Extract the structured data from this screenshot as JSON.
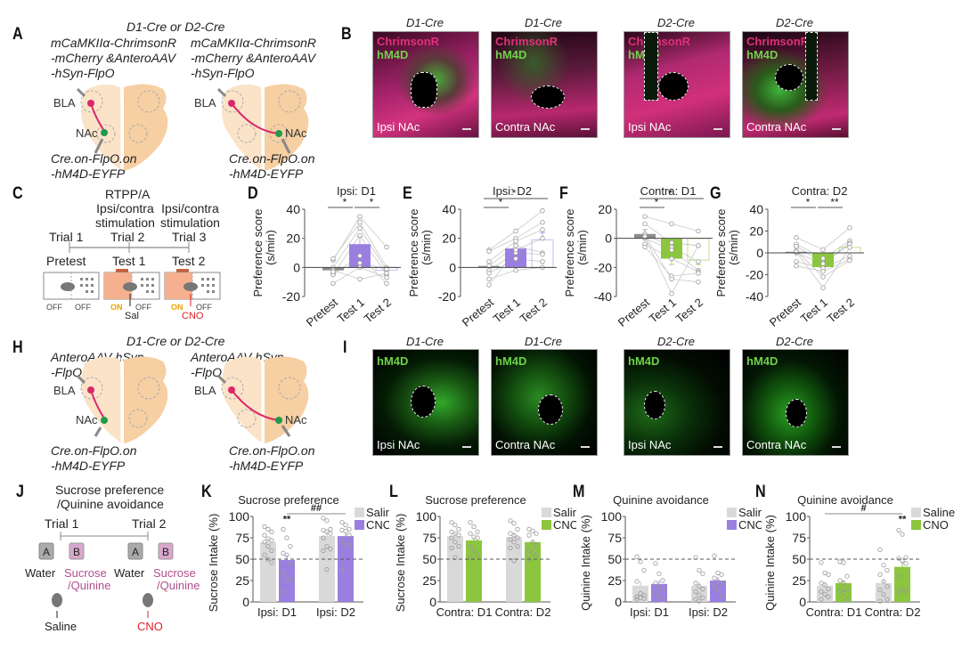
{
  "panels": {
    "A": {
      "label": "A",
      "header": "D1-Cre or D2-Cre",
      "left": {
        "virus1": [
          "mCaMKIIα-ChrimsonR",
          "-mCherry &AnteroAAV",
          "-hSyn-FlpO"
        ],
        "virus2": [
          "Cre.on-FlpO.on",
          "-hM4D-EYFP"
        ],
        "bla": "BLA",
        "nac": "NAc"
      },
      "right": {
        "virus1": [
          "mCaMKIIα-ChrimsonR",
          "-mCherry &AnteroAAV",
          "-hSyn-FlpO"
        ],
        "virus2": [
          "Cre.on-FlpO.on",
          "-hM4D-EYFP"
        ],
        "bla": "BLA",
        "nac": "NAc"
      }
    },
    "B": {
      "label": "B",
      "images": [
        {
          "title": "D1-Cre",
          "ch1": "ChrimsonR",
          "ch2": "hM4D",
          "location": "Ipsi NAc"
        },
        {
          "title": "D1-Cre",
          "ch1": "ChrimsonR",
          "ch2": "hM4D",
          "location": "Contra NAc"
        },
        {
          "title": "D2-Cre",
          "ch1": "ChrimsonR",
          "ch2": "hM4D",
          "location": "Ipsi NAc"
        },
        {
          "title": "D2-Cre",
          "ch1": "ChrimsonR",
          "ch2": "hM4D",
          "location": "Contra NAc"
        }
      ]
    },
    "C": {
      "label": "C",
      "title": "RTPP/A",
      "stim": [
        "Ipsi/contra",
        "stimulation"
      ],
      "trials": [
        "Trial 1",
        "Trial 2",
        "Trial 3"
      ],
      "tests": [
        "Pretest",
        "Test 1",
        "Test 2"
      ],
      "switches": [
        [
          "OFF",
          "OFF"
        ],
        [
          "ON",
          "OFF"
        ],
        [
          "ON",
          "OFF"
        ]
      ],
      "injections": [
        "Sal",
        "CNO"
      ]
    },
    "H": {
      "label": "H",
      "header": "D1-Cre or D2-Cre",
      "left": {
        "virus1": [
          "AnteroAAV-hSyn",
          "-FlpO"
        ],
        "virus2": [
          "Cre.on-FlpO.on",
          "-hM4D-EYFP"
        ],
        "bla": "BLA",
        "nac": "NAc"
      },
      "right": {
        "virus1": [
          "AnteroAAV-hSyn",
          "-FlpO"
        ],
        "virus2": [
          "Cre.on-FlpO.on",
          "-hM4D-EYFP"
        ],
        "bla": "BLA",
        "nac": "NAc"
      }
    },
    "I": {
      "label": "I",
      "images": [
        {
          "title": "D1-Cre",
          "ch": "hM4D",
          "location": "Ipsi NAc"
        },
        {
          "title": "D1-Cre",
          "ch": "hM4D",
          "location": "Contra NAc"
        },
        {
          "title": "D2-Cre",
          "ch": "hM4D",
          "location": "Ipsi NAc"
        },
        {
          "title": "D2-Cre",
          "ch": "hM4D",
          "location": "Contra NAc"
        }
      ]
    },
    "J": {
      "label": "J",
      "title": [
        "Sucrose preference",
        "/Quinine avoidance"
      ],
      "trials": [
        "Trial 1",
        "Trial 2"
      ],
      "bottles": [
        "A",
        "B",
        "A",
        "B"
      ],
      "liquids": [
        "Water",
        "Sucrose",
        "/Quinine"
      ],
      "injections": [
        "Saline",
        "CNO"
      ]
    }
  },
  "colors": {
    "purple": "#9b7fe0",
    "green": "#8cc63f",
    "saline": "#d9d9d9",
    "pretest": "#8c8c8c",
    "magenta": "#d9276b",
    "green_dot": "#1f9a4a",
    "brain_light": "#fbe3c8",
    "brain_dark": "#f6cfa3",
    "orange": "#f0a000",
    "red": "#e0202a",
    "pink_text": "#b04f8f"
  },
  "chart_data": [
    {
      "id": "D",
      "label": "D",
      "type": "bar",
      "title": "Ipsi: D1",
      "ylabel": "Preference score (s/min)",
      "ylim": [
        -20,
        40
      ],
      "yticks": [
        -20,
        0,
        20,
        40
      ],
      "categories": [
        "Pretest",
        "Test 1",
        "Test 2"
      ],
      "values": [
        -2,
        16,
        -2
      ],
      "errors": [
        2,
        5,
        3
      ],
      "bar_styles": [
        "pretest",
        "filled",
        "outline"
      ],
      "accent": "purple",
      "points": [
        [
          5,
          6,
          0,
          -5,
          -5,
          -11,
          -2,
          -3
        ],
        [
          35,
          31,
          27,
          22,
          8,
          0,
          -8,
          3
        ],
        [
          14,
          0,
          -2,
          -5,
          -11,
          -7,
          -4,
          -1
        ]
      ],
      "significance": [
        {
          "pair": [
            0,
            1
          ],
          "text": "*"
        },
        {
          "pair": [
            1,
            2
          ],
          "text": "*"
        }
      ]
    },
    {
      "id": "E",
      "label": "E",
      "type": "bar",
      "title": "Ipsi: D2",
      "ylabel": "Preference score (s/min)",
      "ylim": [
        -20,
        40
      ],
      "yticks": [
        -20,
        0,
        20,
        40
      ],
      "categories": [
        "Pretest",
        "Test 1",
        "Test 2"
      ],
      "values": [
        1,
        13,
        19
      ],
      "errors": [
        3,
        3,
        5
      ],
      "bar_styles": [
        "pretest",
        "filled",
        "outline"
      ],
      "accent": "purple",
      "points": [
        [
          12,
          11,
          4,
          1,
          -2,
          -4,
          -8,
          -12
        ],
        [
          25,
          20,
          18,
          15,
          10,
          6,
          -2,
          12
        ],
        [
          39,
          31,
          26,
          10,
          9,
          4,
          0,
          20
        ]
      ],
      "significance": [
        {
          "pair": [
            0,
            1
          ],
          "text": "*"
        },
        {
          "pair": [
            0,
            2
          ],
          "text": "*"
        }
      ]
    },
    {
      "id": "F",
      "label": "F",
      "type": "bar",
      "title": "Contra: D1",
      "ylabel": "Preference score (s/min)",
      "ylim": [
        -40,
        20
      ],
      "yticks": [
        -40,
        -20,
        0,
        20
      ],
      "categories": [
        "Pretest",
        "Test 1",
        "Test 2"
      ],
      "values": [
        3,
        -14,
        -15
      ],
      "errors": [
        3,
        4,
        3
      ],
      "bar_styles": [
        "pretest",
        "filled",
        "outline"
      ],
      "accent": "green",
      "points": [
        [
          15,
          10,
          3,
          0,
          -4,
          -6,
          2,
          1
        ],
        [
          10,
          -3,
          -6,
          -8,
          -14,
          -26,
          -28,
          -38
        ],
        [
          5,
          -5,
          -16,
          -22,
          -23,
          -24,
          -30,
          -5
        ]
      ],
      "significance": [
        {
          "pair": [
            0,
            1
          ],
          "text": "*"
        },
        {
          "pair": [
            0,
            2
          ],
          "text": "*"
        }
      ]
    },
    {
      "id": "G",
      "label": "G",
      "type": "bar",
      "title": "Contra: D2",
      "ylabel": "Preference score (s/min)",
      "ylim": [
        -40,
        40
      ],
      "yticks": [
        -40,
        -20,
        0,
        20,
        40
      ],
      "categories": [
        "Pretest",
        "Test 1",
        "Test 2"
      ],
      "values": [
        1,
        -13,
        5
      ],
      "errors": [
        4,
        3,
        4
      ],
      "bar_styles": [
        "pretest",
        "filled",
        "outline"
      ],
      "accent": "green",
      "points": [
        [
          14,
          8,
          6,
          0,
          -8,
          -12,
          2,
          1
        ],
        [
          3,
          -5,
          -9,
          -10,
          -14,
          -17,
          -22,
          -32
        ],
        [
          23,
          11,
          9,
          8,
          -3,
          -6,
          -7,
          5
        ]
      ],
      "significance": [
        {
          "pair": [
            0,
            1
          ],
          "text": "*"
        },
        {
          "pair": [
            1,
            2
          ],
          "text": "**"
        }
      ]
    },
    {
      "id": "K",
      "label": "K",
      "type": "bar",
      "title": "Sucrose preference",
      "ylabel": "Sucrose Intake (%)",
      "ylim": [
        0,
        100
      ],
      "yticks": [
        0,
        25,
        50,
        75,
        100
      ],
      "categories": [
        "Ipsi: D1",
        "Ipsi: D2"
      ],
      "accent": "purple",
      "legend": [
        "Saline",
        "CNO"
      ],
      "legend_position": "top-right",
      "reference_line": 50,
      "series": [
        {
          "name": "Saline",
          "values": [
            70,
            77
          ],
          "errors": [
            4,
            5
          ],
          "points": [
            [
              88,
              85,
              82,
              78,
              74,
              72,
              70,
              65,
              60,
              55,
              50,
              46
            ],
            [
              98,
              95,
              85,
              84,
              82,
              80,
              75,
              65,
              62,
              60,
              38
            ]
          ]
        },
        {
          "name": "CNO",
          "values": [
            49,
            77
          ],
          "errors": [
            6,
            4
          ],
          "points": [
            [
              85,
              75,
              65,
              57,
              55,
              45,
              34,
              27,
              26,
              12
            ],
            [
              93,
              90,
              85,
              84,
              83,
              78,
              70,
              68,
              66,
              38
            ]
          ]
        }
      ],
      "significance": [
        {
          "target": "CNO-0",
          "text": "**"
        },
        {
          "pair": [
            "CNO-0",
            "CNO-1"
          ],
          "text": "##"
        }
      ]
    },
    {
      "id": "L",
      "label": "L",
      "type": "bar",
      "title": "Sucrose preference",
      "ylabel": "Sucrose Intake (%)",
      "ylim": [
        0,
        100
      ],
      "yticks": [
        0,
        25,
        50,
        75,
        100
      ],
      "categories": [
        "Contra: D1",
        "Contra: D2"
      ],
      "accent": "green",
      "legend": [
        "Saline",
        "CNO"
      ],
      "legend_position": "top-right",
      "reference_line": 50,
      "series": [
        {
          "name": "Saline",
          "values": [
            77,
            76
          ],
          "errors": [
            4,
            4
          ],
          "points": [
            [
              93,
              90,
              85,
              82,
              80,
              78,
              75,
              70,
              65,
              63,
              52
            ],
            [
              95,
              92,
              85,
              80,
              78,
              75,
              73,
              70,
              65,
              63,
              48
            ]
          ]
        },
        {
          "name": "CNO",
          "values": [
            72,
            70
          ],
          "errors": [
            3,
            3
          ],
          "points": [
            [
              93,
              88,
              82,
              80,
              76,
              75,
              65,
              60,
              55,
              52
            ],
            [
              85,
              83,
              80,
              78,
              70,
              66,
              60,
              57,
              55,
              50
            ]
          ]
        }
      ]
    },
    {
      "id": "M",
      "label": "M",
      "type": "bar",
      "title": "Quinine avoidance",
      "ylabel": "Quinine Intake (%)",
      "ylim": [
        0,
        100
      ],
      "yticks": [
        0,
        25,
        50,
        75,
        100
      ],
      "categories": [
        "Ipsi: D1",
        "Ipsi: D2"
      ],
      "accent": "purple",
      "legend": [
        "Saline",
        "CNO"
      ],
      "legend_position": "top-right",
      "reference_line": 50,
      "series": [
        {
          "name": "Saline",
          "values": [
            19,
            19
          ],
          "errors": [
            5,
            4
          ],
          "points": [
            [
              53,
              47,
              37,
              24,
              10,
              8,
              6,
              5,
              4,
              3
            ],
            [
              52,
              37,
              33,
              22,
              18,
              15,
              12,
              8,
              5,
              3,
              1
            ]
          ]
        },
        {
          "name": "CNO",
          "values": [
            21,
            25
          ],
          "errors": [
            4,
            4
          ],
          "points": [
            [
              45,
              33,
              25,
              22,
              18,
              14,
              10,
              6,
              2
            ],
            [
              54,
              34,
              32,
              28,
              24,
              22,
              18,
              14,
              7
            ]
          ]
        }
      ]
    },
    {
      "id": "N",
      "label": "N",
      "type": "bar",
      "title": "Quinine avoidance",
      "ylabel": "Quinine Intake (%)",
      "ylim": [
        0,
        100
      ],
      "yticks": [
        0,
        25,
        50,
        75,
        100
      ],
      "categories": [
        "Contra: D1",
        "Contra: D2"
      ],
      "accent": "green",
      "legend": [
        "Saline",
        "CNO"
      ],
      "legend_position": "top-right",
      "reference_line": 50,
      "series": [
        {
          "name": "Saline",
          "values": [
            19,
            22
          ],
          "errors": [
            4,
            4
          ],
          "points": [
            [
              46,
              34,
              32,
              22,
              20,
              15,
              12,
              9,
              6,
              3
            ],
            [
              61,
              43,
              37,
              32,
              24,
              18,
              14,
              9,
              3,
              1
            ]
          ]
        },
        {
          "name": "CNO",
          "values": [
            22,
            41
          ],
          "errors": [
            4,
            6
          ],
          "points": [
            [
              47,
              46,
              30,
              25,
              22,
              15,
              13,
              11,
              3
            ],
            [
              84,
              79,
              52,
              51,
              48,
              45,
              30,
              15,
              13,
              12
            ]
          ]
        }
      ],
      "significance": [
        {
          "target": "CNO-1",
          "text": "**"
        },
        {
          "pair": [
            "Saline-0",
            "CNO-1"
          ],
          "text": "#"
        }
      ]
    }
  ]
}
